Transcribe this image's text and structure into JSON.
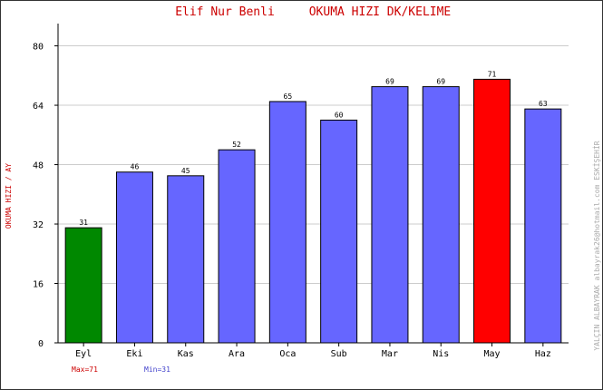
{
  "chart_data": {
    "type": "bar",
    "title_name": "Elif Nur Benli",
    "title_metric": "OKUMA HIZI  DK/KELIME",
    "ylabel": "OKUMA HIZI / AY",
    "side_note": "YALÇIN ALBAYRAK  albayrak26@hotmail.com  ESKİŞEHİR",
    "categories": [
      "Eyl",
      "Eki",
      "Kas",
      "Ara",
      "Oca",
      "Sub",
      "Mar",
      "Nis",
      "May",
      "Haz"
    ],
    "values": [
      31,
      46,
      45,
      52,
      65,
      60,
      69,
      69,
      71,
      63
    ],
    "ylim": [
      0,
      86
    ],
    "yticks": [
      0,
      16,
      32,
      48,
      64,
      80
    ],
    "grid": true,
    "max_label": "Max=71",
    "min_label": "Min=31",
    "colors": {
      "bar": "#6666ff",
      "max_bar": "#ff0000",
      "min_bar": "#008800",
      "title": "#cc0000",
      "ylabel": "#cc0000",
      "max_text": "#cc0000",
      "min_text": "#4444cc",
      "side_note": "#aaaaaa",
      "grid": "#cccccc"
    }
  }
}
